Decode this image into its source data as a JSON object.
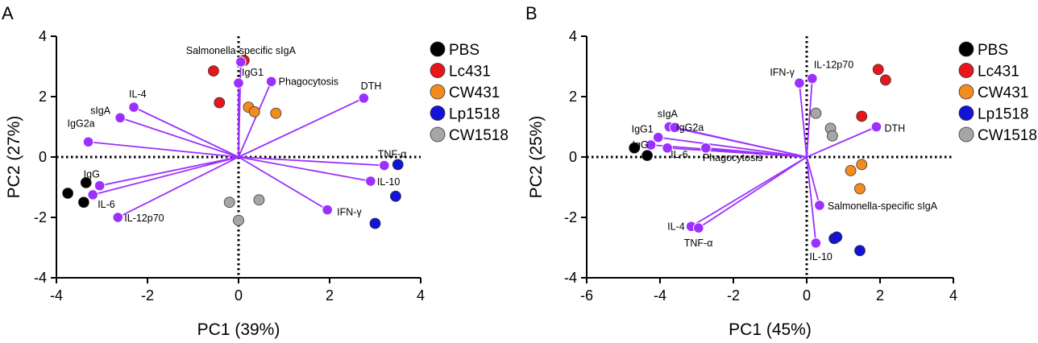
{
  "figure_labels": {
    "a": "A",
    "b": "B"
  },
  "colors": {
    "loading": "#9b30ff",
    "PBS": "#000000",
    "Lc431": "#e8151b",
    "CW431": "#f28c1e",
    "Lp1518": "#1212d8",
    "CW1518": "#a6a6a6"
  },
  "chart_data": [
    {
      "type": "scatter",
      "panel": "A",
      "xlabel": "PC1 (39%)",
      "ylabel": "PC2 (27%)",
      "xlim": [
        -4,
        4
      ],
      "ylim": [
        -4,
        4
      ],
      "xticks": [
        -4,
        -2,
        0,
        2,
        4
      ],
      "yticks": [
        -4,
        -2,
        0,
        2,
        4
      ],
      "legend": [
        "PBS",
        "Lc431",
        "CW431",
        "Lp1518",
        "CW1518"
      ],
      "loadings": [
        {
          "label": "Salmonella-specific sIgA",
          "x": 0.05,
          "y": 3.15,
          "anchor": "middle",
          "dx": 0,
          "dy": -10
        },
        {
          "label": "IgG1",
          "x": 0.0,
          "y": 2.45,
          "anchor": "start",
          "dx": 4,
          "dy": -9
        },
        {
          "label": "Phagocytosis",
          "x": 0.72,
          "y": 2.5,
          "anchor": "start",
          "dx": 9,
          "dy": 4
        },
        {
          "label": "DTH",
          "x": 2.75,
          "y": 1.95,
          "anchor": "end",
          "dx": 22,
          "dy": -11
        },
        {
          "label": "IL-4",
          "x": -2.3,
          "y": 1.65,
          "anchor": "start",
          "dx": -6,
          "dy": -12
        },
        {
          "label": "sIgA",
          "x": -2.6,
          "y": 1.3,
          "anchor": "end",
          "dx": -12,
          "dy": -5
        },
        {
          "label": "IgG2a",
          "x": -3.3,
          "y": 0.5,
          "anchor": "start",
          "dx": -26,
          "dy": -19
        },
        {
          "label": "TNF-α",
          "x": 3.2,
          "y": -0.28,
          "anchor": "start",
          "dx": -8,
          "dy": -10
        },
        {
          "label": "IL-10",
          "x": 2.9,
          "y": -0.8,
          "anchor": "start",
          "dx": 8,
          "dy": 5
        },
        {
          "label": "IFN-γ",
          "x": 1.95,
          "y": -1.75,
          "anchor": "start",
          "dx": 12,
          "dy": 7
        },
        {
          "label": "IgG",
          "x": -3.05,
          "y": -0.95,
          "anchor": "start",
          "dx": -20,
          "dy": -10
        },
        {
          "label": "IL-6",
          "x": -3.2,
          "y": -1.25,
          "anchor": "start",
          "dx": 6,
          "dy": 16
        },
        {
          "label": "IL-12p70",
          "x": -2.65,
          "y": -2.0,
          "anchor": "start",
          "dx": 8,
          "dy": 5
        }
      ],
      "groups": [
        {
          "name": "PBS",
          "points": [
            [
              -3.75,
              -1.2
            ],
            [
              -3.35,
              -0.85
            ],
            [
              -3.4,
              -1.5
            ]
          ]
        },
        {
          "name": "Lc431",
          "points": [
            [
              -0.55,
              2.85
            ],
            [
              0.12,
              3.2
            ],
            [
              -0.42,
              1.8
            ]
          ]
        },
        {
          "name": "CW431",
          "points": [
            [
              0.22,
              1.65
            ],
            [
              0.35,
              1.5
            ],
            [
              0.82,
              1.45
            ]
          ]
        },
        {
          "name": "Lp1518",
          "points": [
            [
              3.5,
              -0.25
            ],
            [
              3.45,
              -1.3
            ],
            [
              3.0,
              -2.2
            ]
          ]
        },
        {
          "name": "CW1518",
          "points": [
            [
              -0.2,
              -1.5
            ],
            [
              0.45,
              -1.42
            ],
            [
              0.0,
              -2.1
            ]
          ]
        }
      ]
    },
    {
      "type": "scatter",
      "panel": "B",
      "xlabel": "PC1 (45%)",
      "ylabel": "PC2 (25%)",
      "xlim": [
        -6,
        4
      ],
      "ylim": [
        -4,
        4
      ],
      "xticks": [
        -6,
        -4,
        -2,
        0,
        2,
        4
      ],
      "yticks": [
        -4,
        -2,
        0,
        2,
        4
      ],
      "legend": [
        "PBS",
        "Lc431",
        "CW431",
        "Lp1518",
        "CW1518"
      ],
      "loadings": [
        {
          "label": "IFN-γ",
          "x": -0.2,
          "y": 2.45,
          "anchor": "end",
          "dx": -6,
          "dy": -9
        },
        {
          "label": "IL-12p70",
          "x": 0.15,
          "y": 2.6,
          "anchor": "start",
          "dx": 2,
          "dy": -13
        },
        {
          "label": "DTH",
          "x": 1.9,
          "y": 1.0,
          "anchor": "start",
          "dx": 10,
          "dy": 6
        },
        {
          "label": "sIgA",
          "x": -3.75,
          "y": 1.0,
          "anchor": "middle",
          "dx": -2,
          "dy": -12
        },
        {
          "label": "IgG2a",
          "x": -3.6,
          "y": 0.98,
          "anchor": "start",
          "dx": 2,
          "dy": 4
        },
        {
          "label": "IgG1",
          "x": -4.05,
          "y": 0.65,
          "anchor": "end",
          "dx": -6,
          "dy": -6
        },
        {
          "label": "IgG",
          "x": -4.25,
          "y": 0.4,
          "anchor": "end",
          "dx": -3,
          "dy": 4
        },
        {
          "label": "IL-6",
          "x": -3.8,
          "y": 0.3,
          "anchor": "start",
          "dx": 4,
          "dy": 12
        },
        {
          "label": "Phagocytosis",
          "x": -2.75,
          "y": 0.3,
          "anchor": "start",
          "dx": -4,
          "dy": 16
        },
        {
          "label": "Salmonella-specific sIgA",
          "x": 0.35,
          "y": -1.6,
          "anchor": "start",
          "dx": 10,
          "dy": 5
        },
        {
          "label": "IL-4",
          "x": -3.15,
          "y": -2.3,
          "anchor": "end",
          "dx": -8,
          "dy": 4
        },
        {
          "label": "TNF-α",
          "x": -2.95,
          "y": -2.35,
          "anchor": "start",
          "dx": -18,
          "dy": 23
        },
        {
          "label": "IL-10",
          "x": 0.25,
          "y": -2.85,
          "anchor": "start",
          "dx": -8,
          "dy": 21
        }
      ],
      "groups": [
        {
          "name": "PBS",
          "points": [
            [
              -4.7,
              0.3
            ],
            [
              -4.35,
              0.05
            ]
          ]
        },
        {
          "name": "Lc431",
          "points": [
            [
              1.95,
              2.9
            ],
            [
              2.15,
              2.55
            ],
            [
              1.5,
              1.35
            ]
          ]
        },
        {
          "name": "CW431",
          "points": [
            [
              1.2,
              -0.45
            ],
            [
              1.5,
              -0.25
            ],
            [
              1.45,
              -1.05
            ]
          ]
        },
        {
          "name": "Lp1518",
          "points": [
            [
              0.75,
              -2.7
            ],
            [
              0.82,
              -2.65
            ],
            [
              1.45,
              -3.1
            ]
          ]
        },
        {
          "name": "CW1518",
          "points": [
            [
              0.25,
              1.45
            ],
            [
              0.65,
              0.95
            ],
            [
              0.7,
              0.7
            ]
          ]
        }
      ]
    }
  ]
}
